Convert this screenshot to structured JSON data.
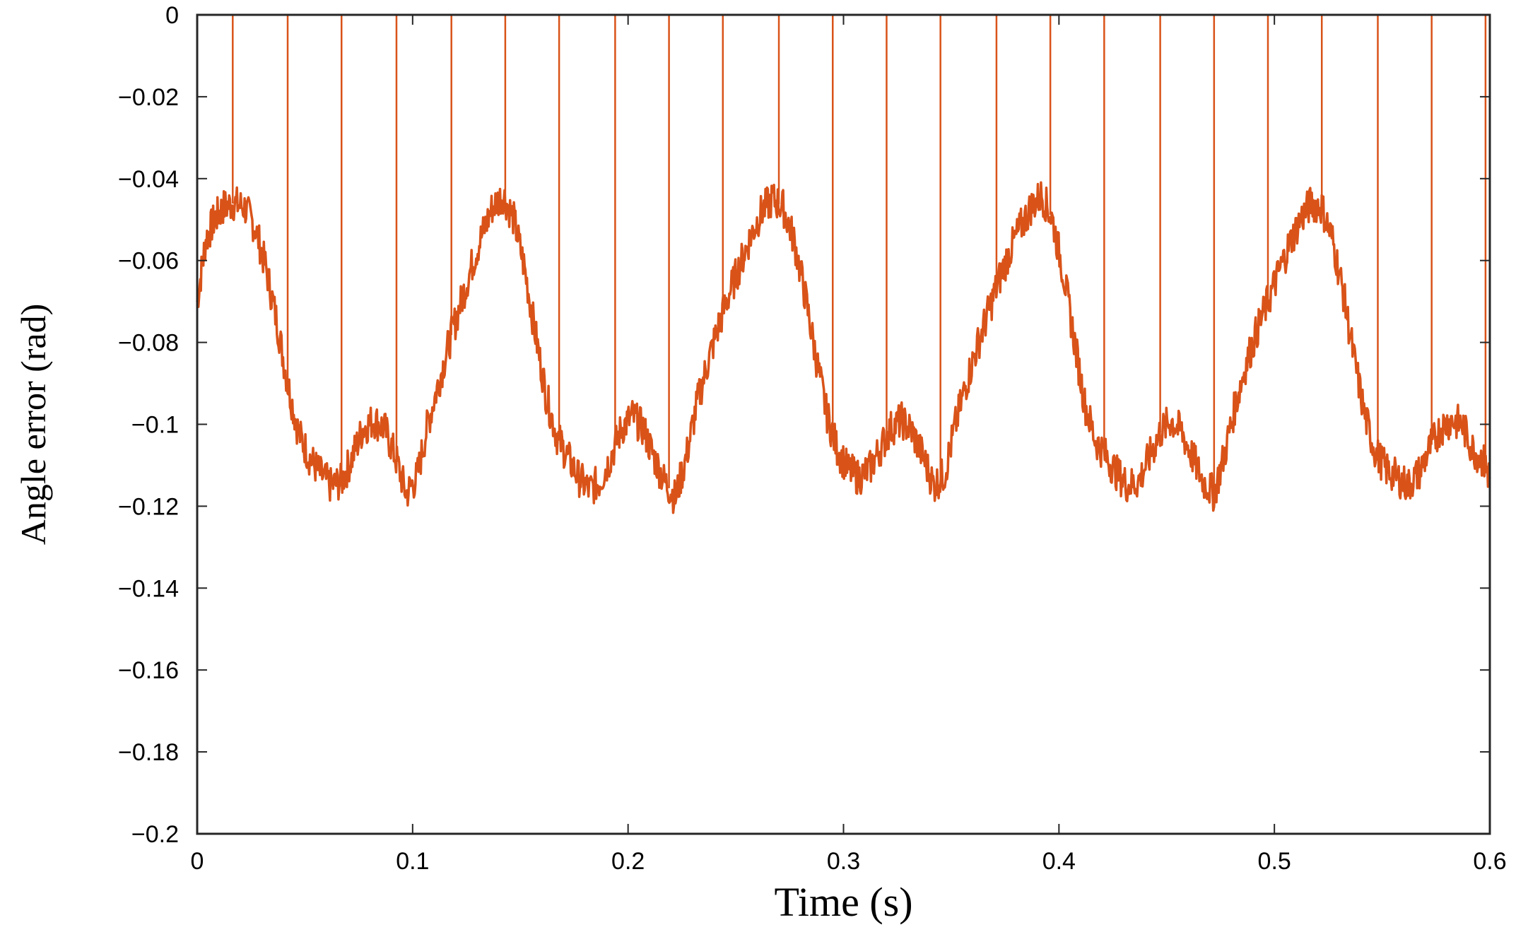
{
  "chart_data": {
    "type": "line",
    "title": "",
    "xlabel": "Time (s)",
    "ylabel": "Angle error (rad)",
    "xlim": [
      0,
      0.6
    ],
    "ylim": [
      -0.2,
      0
    ],
    "xticks": [
      0,
      0.1,
      0.2,
      0.3,
      0.4,
      0.5,
      0.6
    ],
    "xtick_labels": [
      "0",
      "0.1",
      "0.2",
      "0.3",
      "0.4",
      "0.5",
      "0.6"
    ],
    "yticks": [
      0,
      -0.02,
      -0.04,
      -0.06,
      -0.08,
      -0.1,
      -0.12,
      -0.14,
      -0.16,
      -0.18,
      -0.2
    ],
    "ytick_labels": [
      "0",
      "−0.02",
      "−0.04",
      "−0.06",
      "−0.08",
      "−0.1",
      "−0.12",
      "−0.14",
      "−0.16",
      "−0.18",
      "−0.2"
    ],
    "grid": false,
    "legend": "none",
    "series": [
      {
        "color": "#d95319",
        "x": [
          0,
          0.004,
          0.008,
          0.012,
          0.017,
          0.022,
          0.027,
          0.032,
          0.037,
          0.042,
          0.047,
          0.052,
          0.057,
          0.062,
          0.067,
          0.072,
          0.077,
          0.082,
          0.087,
          0.092,
          0.097,
          0.102,
          0.107,
          0.112,
          0.117,
          0.122,
          0.127,
          0.132,
          0.137,
          0.142,
          0.147,
          0.152,
          0.157,
          0.162,
          0.167,
          0.172,
          0.177,
          0.182,
          0.187,
          0.192,
          0.197,
          0.202,
          0.207,
          0.212,
          0.217,
          0.222,
          0.227,
          0.232,
          0.237,
          0.242,
          0.247,
          0.252,
          0.257,
          0.262,
          0.267,
          0.272,
          0.277,
          0.282,
          0.287,
          0.292,
          0.297,
          0.302,
          0.307,
          0.312,
          0.317,
          0.322,
          0.327,
          0.332,
          0.337,
          0.342,
          0.347,
          0.352,
          0.357,
          0.362,
          0.367,
          0.372,
          0.377,
          0.382,
          0.387,
          0.392,
          0.397,
          0.402,
          0.407,
          0.412,
          0.417,
          0.422,
          0.427,
          0.432,
          0.437,
          0.442,
          0.447,
          0.452,
          0.457,
          0.462,
          0.467,
          0.472,
          0.477,
          0.482,
          0.487,
          0.492,
          0.497,
          0.502,
          0.507,
          0.512,
          0.517,
          0.522,
          0.527,
          0.532,
          0.537,
          0.542,
          0.547,
          0.552,
          0.557,
          0.562,
          0.567,
          0.572,
          0.577,
          0.582,
          0.587,
          0.592,
          0.597,
          0.6
        ],
        "y": [
          -0.07,
          -0.055,
          -0.05,
          -0.047,
          -0.046,
          -0.047,
          -0.052,
          -0.062,
          -0.075,
          -0.09,
          -0.102,
          -0.108,
          -0.112,
          -0.115,
          -0.114,
          -0.108,
          -0.101,
          -0.099,
          -0.101,
          -0.108,
          -0.117,
          -0.113,
          -0.1,
          -0.09,
          -0.08,
          -0.071,
          -0.062,
          -0.054,
          -0.047,
          -0.044,
          -0.05,
          -0.062,
          -0.078,
          -0.093,
          -0.103,
          -0.108,
          -0.113,
          -0.116,
          -0.114,
          -0.108,
          -0.101,
          -0.098,
          -0.101,
          -0.108,
          -0.114,
          -0.118,
          -0.108,
          -0.095,
          -0.085,
          -0.076,
          -0.068,
          -0.061,
          -0.054,
          -0.048,
          -0.045,
          -0.047,
          -0.055,
          -0.068,
          -0.083,
          -0.097,
          -0.106,
          -0.111,
          -0.113,
          -0.111,
          -0.106,
          -0.101,
          -0.099,
          -0.102,
          -0.108,
          -0.115,
          -0.112,
          -0.1,
          -0.09,
          -0.081,
          -0.073,
          -0.065,
          -0.058,
          -0.052,
          -0.047,
          -0.044,
          -0.05,
          -0.063,
          -0.079,
          -0.095,
          -0.104,
          -0.108,
          -0.112,
          -0.115,
          -0.114,
          -0.108,
          -0.102,
          -0.099,
          -0.102,
          -0.108,
          -0.114,
          -0.117,
          -0.107,
          -0.095,
          -0.085,
          -0.077,
          -0.07,
          -0.063,
          -0.056,
          -0.05,
          -0.046,
          -0.047,
          -0.055,
          -0.068,
          -0.084,
          -0.098,
          -0.107,
          -0.111,
          -0.113,
          -0.115,
          -0.112,
          -0.106,
          -0.101,
          -0.099,
          -0.1,
          -0.106,
          -0.109,
          -0.113
        ]
      }
    ],
    "spike_times": [
      0.0165,
      0.042,
      0.067,
      0.0925,
      0.118,
      0.143,
      0.168,
      0.194,
      0.219,
      0.244,
      0.27,
      0.295,
      0.32,
      0.345,
      0.371,
      0.396,
      0.421,
      0.447,
      0.472,
      0.497,
      0.522,
      0.548,
      0.573,
      0.598
    ]
  }
}
